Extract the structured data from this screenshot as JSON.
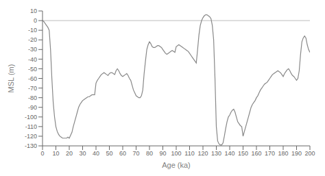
{
  "chart_data": {
    "type": "line",
    "xlabel": "Age (ka)",
    "ylabel": "MSL (m)",
    "xlim": [
      0,
      200
    ],
    "ylim": [
      -130,
      10
    ],
    "xticks": [
      0,
      10,
      20,
      30,
      40,
      50,
      60,
      70,
      80,
      90,
      100,
      110,
      120,
      130,
      140,
      150,
      160,
      170,
      180,
      190,
      200
    ],
    "yticks": [
      10,
      0,
      -10,
      -20,
      -30,
      -40,
      -50,
      -60,
      -70,
      -80,
      -90,
      -100,
      -110,
      -120,
      -130
    ],
    "hline_y": 0,
    "color": "#888888",
    "grid": false,
    "x": [
      0,
      1,
      2,
      3,
      4,
      5,
      6,
      7,
      8,
      9,
      10,
      11,
      12,
      13,
      14,
      15,
      16,
      17,
      18,
      19,
      20,
      21,
      22,
      23,
      24,
      25,
      26,
      27,
      28,
      29,
      30,
      31,
      32,
      33,
      34,
      35,
      36,
      37,
      38,
      39,
      40,
      41,
      42,
      43,
      44,
      45,
      46,
      47,
      48,
      49,
      50,
      51,
      52,
      53,
      54,
      55,
      56,
      57,
      58,
      59,
      60,
      61,
      62,
      63,
      64,
      65,
      66,
      67,
      68,
      69,
      70,
      71,
      72,
      73,
      74,
      75,
      76,
      77,
      78,
      79,
      80,
      81,
      82,
      83,
      84,
      85,
      86,
      87,
      88,
      89,
      90,
      91,
      92,
      93,
      94,
      95,
      96,
      97,
      98,
      99,
      100,
      101,
      102,
      103,
      104,
      105,
      106,
      107,
      108,
      109,
      110,
      111,
      112,
      113,
      114,
      115,
      116,
      117,
      118,
      119,
      120,
      121,
      122,
      123,
      124,
      125,
      126,
      127,
      128,
      129,
      130,
      131,
      132,
      133,
      134,
      135,
      136,
      137,
      138,
      139,
      140,
      141,
      142,
      143,
      144,
      145,
      146,
      147,
      148,
      149,
      150,
      151,
      152,
      153,
      154,
      155,
      156,
      157,
      158,
      159,
      160,
      161,
      162,
      163,
      164,
      165,
      166,
      167,
      168,
      169,
      170,
      171,
      172,
      173,
      174,
      175,
      176,
      177,
      178,
      179,
      180,
      181,
      182,
      183,
      184,
      185,
      186,
      187,
      188,
      189,
      190,
      191,
      192,
      193,
      194,
      195,
      196,
      197,
      198,
      199,
      200
    ],
    "values": [
      0,
      -1,
      -3,
      -5,
      -7,
      -10,
      -30,
      -60,
      -85,
      -100,
      -110,
      -115,
      -118,
      -120,
      -121,
      -122,
      -122,
      -122,
      -122,
      -121,
      -122,
      -119,
      -116,
      -110,
      -105,
      -100,
      -95,
      -90,
      -87,
      -85,
      -83,
      -82,
      -81,
      -80,
      -79,
      -79,
      -78,
      -77,
      -77,
      -77,
      -65,
      -62,
      -60,
      -58,
      -56,
      -55,
      -54,
      -55,
      -56,
      -57,
      -55,
      -54,
      -54,
      -55,
      -56,
      -52,
      -50,
      -52,
      -55,
      -57,
      -58,
      -57,
      -56,
      -55,
      -57,
      -60,
      -62,
      -67,
      -72,
      -75,
      -78,
      -79,
      -80,
      -80,
      -78,
      -72,
      -55,
      -42,
      -30,
      -25,
      -22,
      -24,
      -27,
      -28,
      -28,
      -27,
      -26,
      -26,
      -27,
      -28,
      -30,
      -32,
      -34,
      -35,
      -34,
      -33,
      -32,
      -31,
      -32,
      -33,
      -27,
      -26,
      -25,
      -26,
      -27,
      -28,
      -29,
      -30,
      -31,
      -32,
      -34,
      -36,
      -38,
      -40,
      -42,
      -44,
      -30,
      -15,
      -5,
      0,
      3,
      5,
      6,
      6,
      5,
      4,
      2,
      -5,
      -20,
      -60,
      -110,
      -125,
      -128,
      -129,
      -129,
      -127,
      -120,
      -112,
      -105,
      -100,
      -98,
      -95,
      -93,
      -92,
      -95,
      -100,
      -105,
      -107,
      -109,
      -110,
      -120,
      -115,
      -110,
      -105,
      -100,
      -95,
      -90,
      -87,
      -85,
      -83,
      -80,
      -78,
      -75,
      -72,
      -70,
      -68,
      -66,
      -65,
      -64,
      -62,
      -60,
      -58,
      -56,
      -55,
      -54,
      -53,
      -52,
      -53,
      -54,
      -56,
      -58,
      -55,
      -53,
      -51,
      -50,
      -52,
      -55,
      -57,
      -58,
      -60,
      -62,
      -60,
      -52,
      -35,
      -22,
      -18,
      -16,
      -18,
      -25,
      -30,
      -33
    ]
  }
}
